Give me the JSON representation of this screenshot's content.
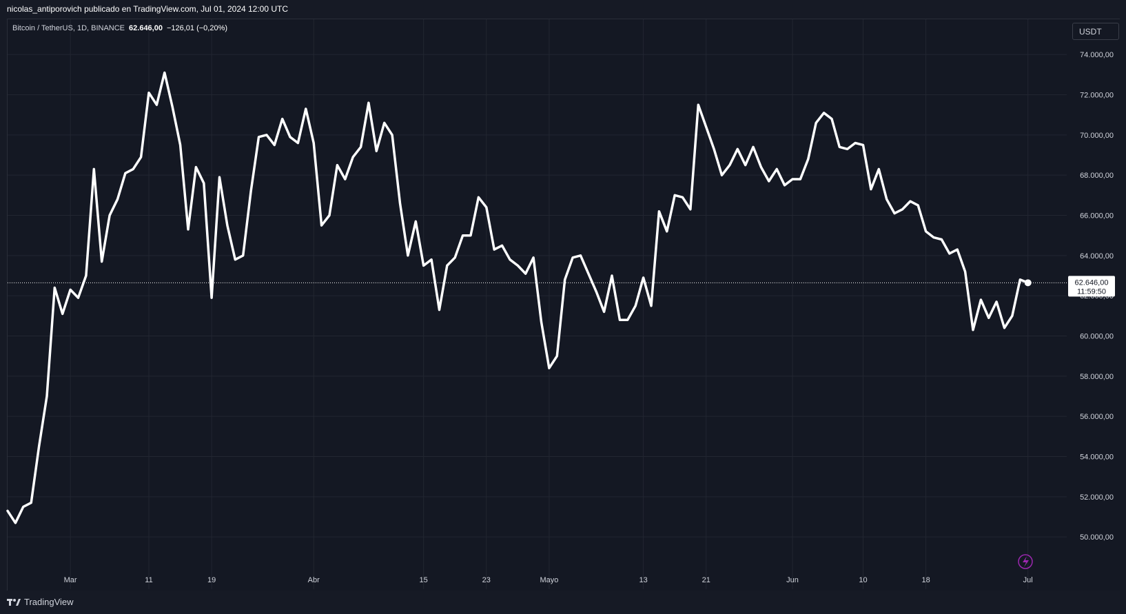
{
  "header": {
    "publisher": "nicolas_antiporovich publicado en TradingView.com, Jul 01, 2024 12:00 UTC"
  },
  "legend": {
    "symbol": "Bitcoin / TetherUS, 1D, BINANCE",
    "last": "62.646,00",
    "change": "−126,01 (−0,20%)"
  },
  "currency_button": "USDT",
  "price_label": {
    "value": "62.646,00",
    "countdown": "11:59:50"
  },
  "brand": {
    "name": "TradingView",
    "icon": "tradingview-logo-icon"
  },
  "replay_icon": "lightning-icon",
  "colors": {
    "background": "#141823",
    "line": "#ffffff",
    "grid": "#222631",
    "text": "#d1d4dc",
    "accent_icon": "#9c27b0"
  },
  "chart_data": {
    "type": "line",
    "title": "",
    "xlabel": "",
    "ylabel": "",
    "ylim": [
      48600,
      75000
    ],
    "grid": true,
    "x_ticks": [
      {
        "label": "Mar",
        "index": 8
      },
      {
        "label": "11",
        "index": 18
      },
      {
        "label": "19",
        "index": 26
      },
      {
        "label": "Abr",
        "index": 39
      },
      {
        "label": "15",
        "index": 53
      },
      {
        "label": "23",
        "index": 61
      },
      {
        "label": "Mayo",
        "index": 69
      },
      {
        "label": "13",
        "index": 81
      },
      {
        "label": "21",
        "index": 89
      },
      {
        "label": "Jun",
        "index": 100
      },
      {
        "label": "10",
        "index": 109
      },
      {
        "label": "18",
        "index": 117
      },
      {
        "label": "Jul",
        "index": 130
      }
    ],
    "y_ticks": [
      "50.000,00",
      "52.000,00",
      "54.000,00",
      "56.000,00",
      "58.000,00",
      "60.000,00",
      "62.000,00",
      "64.000,00",
      "66.000,00",
      "68.000,00",
      "70.000,00",
      "72.000,00",
      "74.000,00"
    ],
    "y_tick_values": [
      50000,
      52000,
      54000,
      56000,
      58000,
      60000,
      62000,
      64000,
      66000,
      68000,
      70000,
      72000,
      74000
    ],
    "last_value": 62646,
    "series": [
      {
        "values": [
          51300,
          50700,
          51500,
          51700,
          54500,
          57000,
          62400,
          61100,
          62300,
          61900,
          63000,
          68300,
          63700,
          66000,
          66800,
          68100,
          68300,
          68900,
          72100,
          71500,
          73100,
          71400,
          69500,
          65300,
          68400,
          67600,
          61900,
          67900,
          65500,
          63800,
          64000,
          67200,
          69900,
          70000,
          69500,
          70800,
          69900,
          69600,
          71300,
          69600,
          65500,
          66000,
          68500,
          67800,
          68900,
          69400,
          71600,
          69200,
          70600,
          70000,
          66600,
          64000,
          65700,
          63500,
          63800,
          61300,
          63500,
          63900,
          65000,
          65000,
          66900,
          66400,
          64300,
          64500,
          63800,
          63500,
          63100,
          63900,
          60700,
          58400,
          59000,
          62800,
          63900,
          64000,
          63100,
          62200,
          61200,
          63000,
          60800,
          60800,
          61500,
          62900,
          61500,
          66200,
          65200,
          67000,
          66900,
          66300,
          71500,
          70400,
          69300,
          68000,
          68500,
          69300,
          68500,
          69400,
          68400,
          67700,
          68300,
          67500,
          67800,
          67800,
          68800,
          70600,
          71100,
          70800,
          69400,
          69300,
          69600,
          69500,
          67300,
          68300,
          66800,
          66100,
          66300,
          66700,
          66500,
          65200,
          64900,
          64800,
          64100,
          64300,
          63200,
          60300,
          61800,
          60900,
          61700,
          60400,
          61000,
          62800,
          62646
        ]
      }
    ]
  }
}
